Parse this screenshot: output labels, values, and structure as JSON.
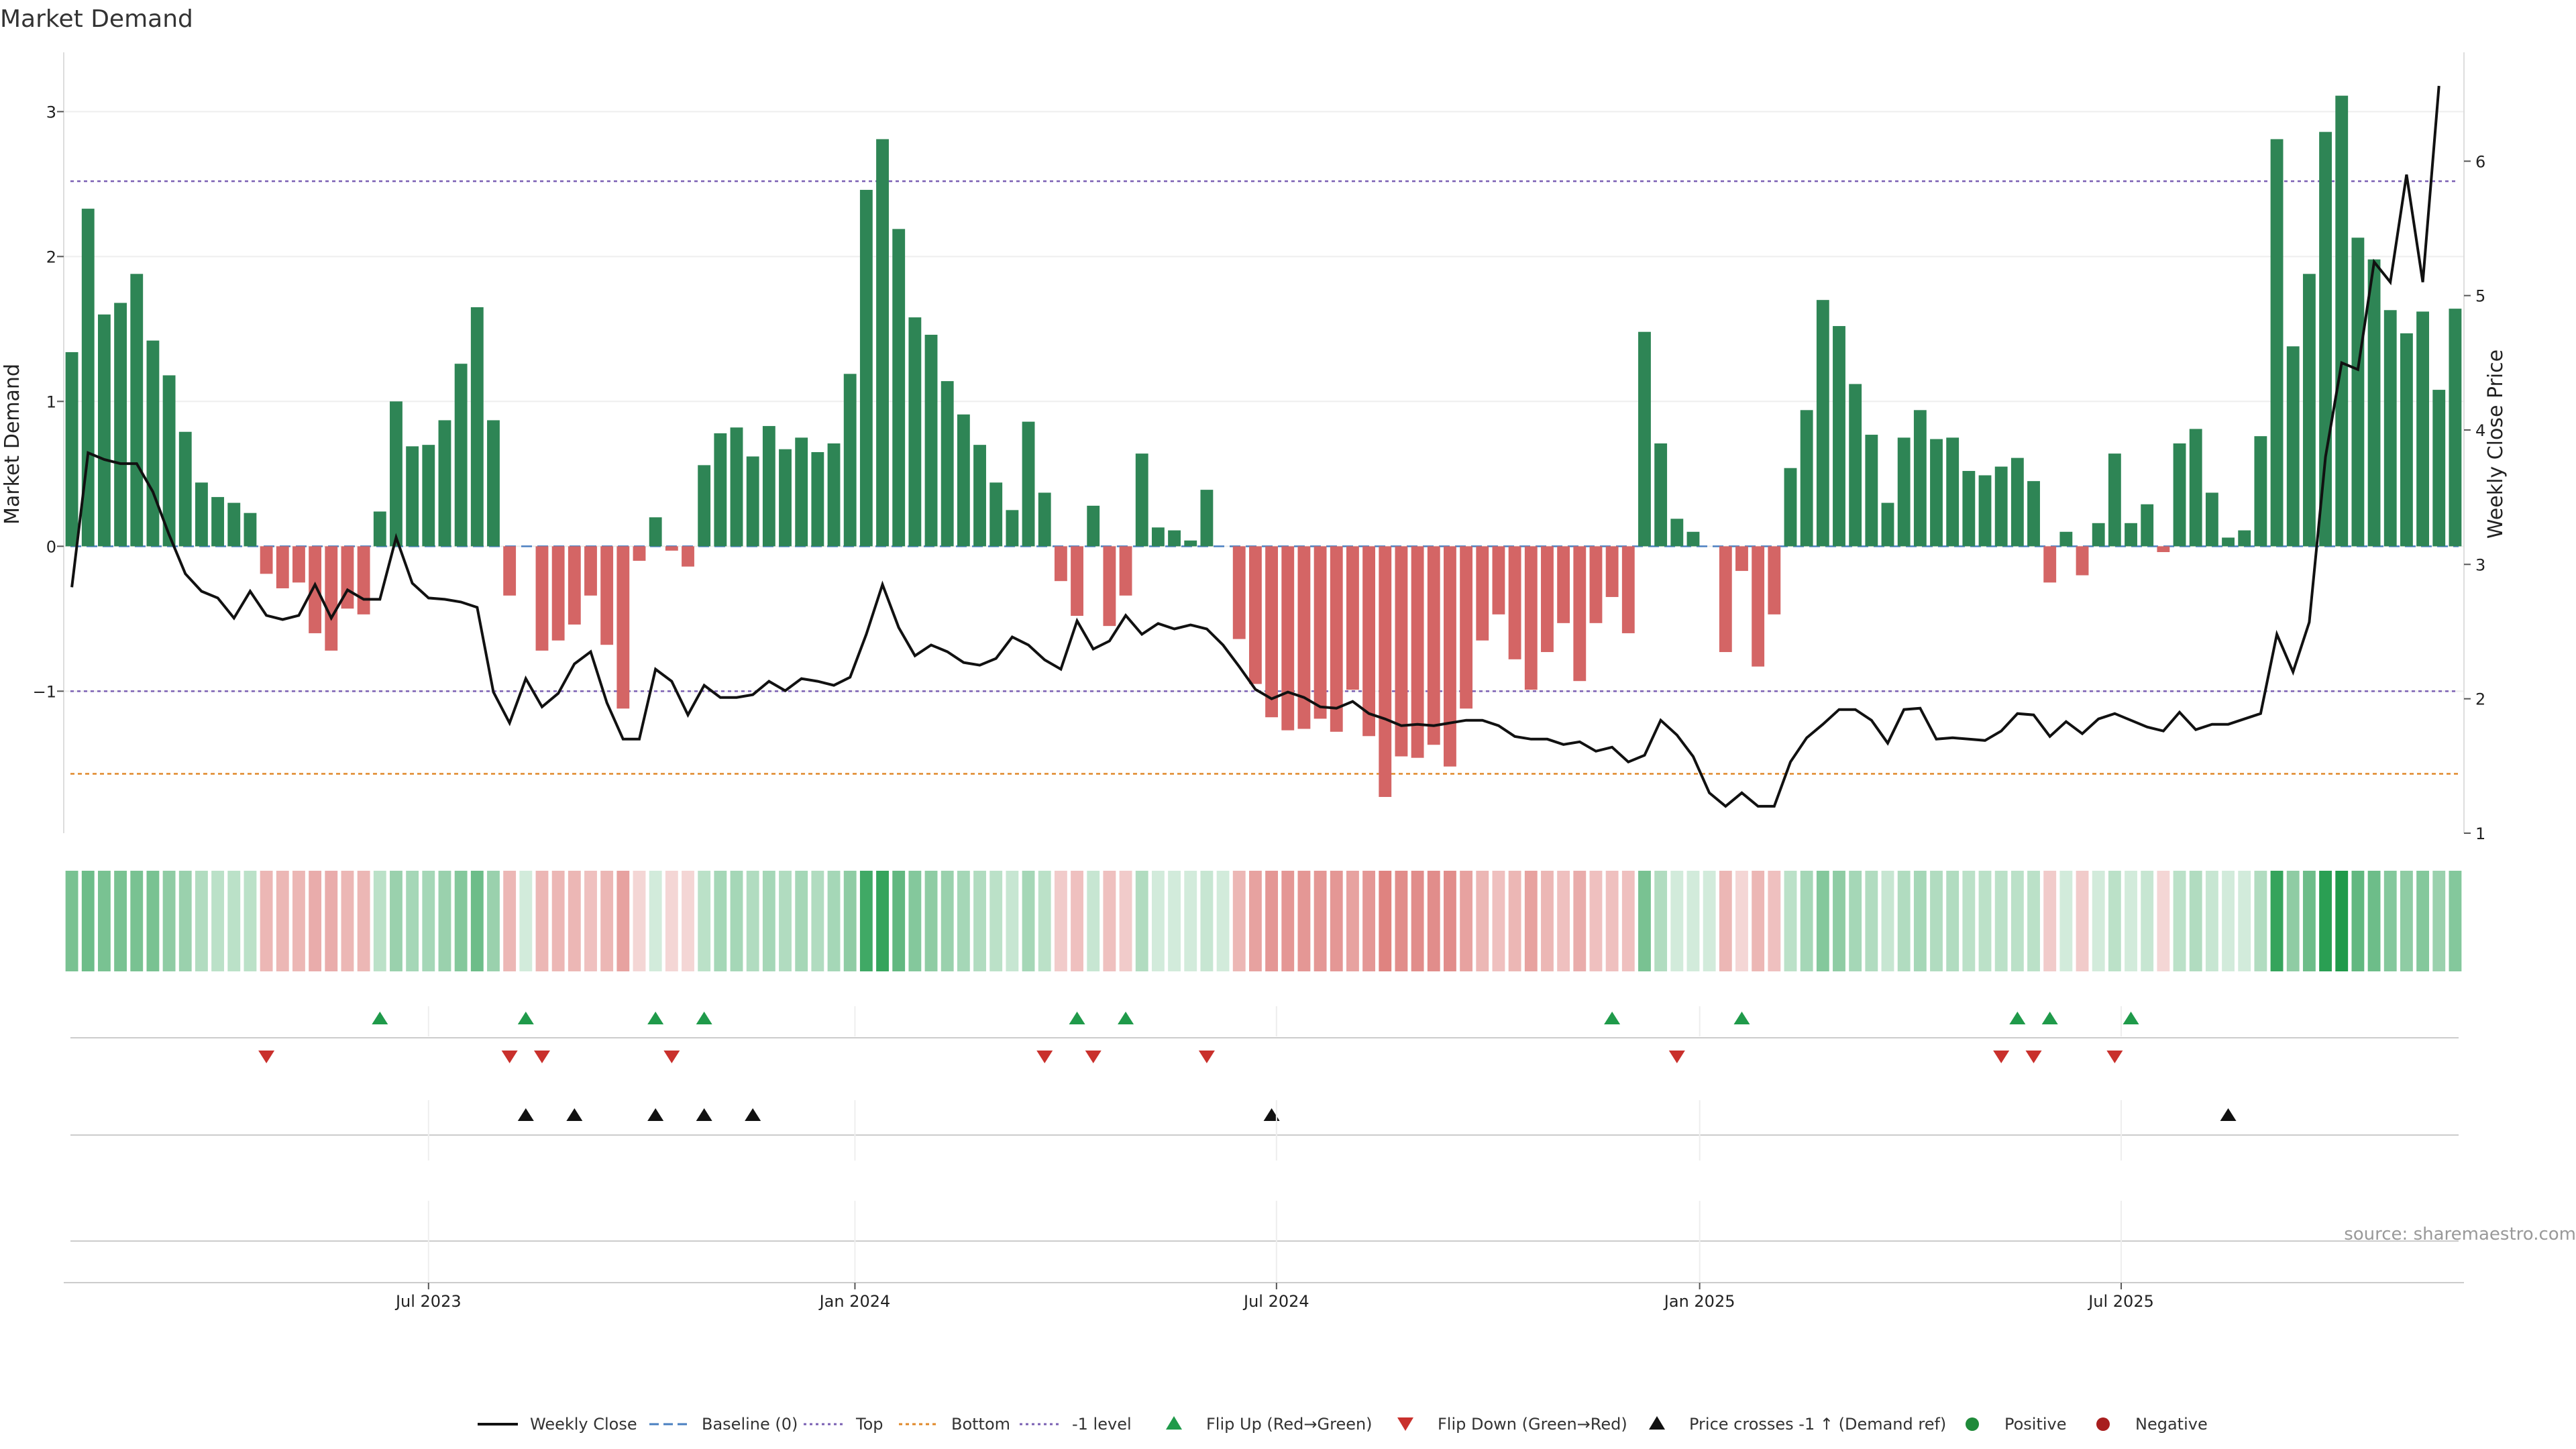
{
  "chart_data": {
    "type": "bar",
    "title": "Market Demand",
    "ylabel": "Market Demand",
    "ylabel_right": "Weekly Close Price",
    "ylim": [
      -1.98,
      3.4
    ],
    "ylim_right": [
      1,
      6.8
    ],
    "yticks": [
      3,
      2,
      1,
      0,
      -1
    ],
    "yticks_right": [
      6,
      5,
      4,
      3,
      2,
      1
    ],
    "x_tick_labels": [
      "Jul 2023",
      "Jan 2024",
      "Jul 2024",
      "Jan 2025",
      "Jul 2025"
    ],
    "x_tick_weeks": [
      22.5,
      48.8,
      74.8,
      100.9,
      126.9
    ],
    "reference_levels": {
      "top": 2.52,
      "baseline": 0,
      "minus_one": -1,
      "bottom": -1.57
    },
    "colors": {
      "positive": "#2e8555",
      "negative": "#d46565",
      "price": "#111111",
      "top": "#7a5fb3",
      "bottom": "#e0882a",
      "minus_one": "#7a5fb3",
      "baseline": "#4a7fc0",
      "flip_up": "#1f9a4a",
      "flip_down": "#c9302c",
      "cross": "#111111"
    },
    "series": [
      {
        "name": "Market Demand",
        "values": [
          1.34,
          2.33,
          1.6,
          1.68,
          1.88,
          1.42,
          1.18,
          0.79,
          0.44,
          0.34,
          0.3,
          0.23,
          -0.19,
          -0.29,
          -0.25,
          -0.6,
          -0.72,
          -0.43,
          -0.47,
          0.24,
          1.0,
          0.69,
          0.7,
          0.87,
          1.26,
          1.65,
          0.87,
          -0.34,
          0,
          -0.72,
          -0.65,
          -0.54,
          -0.34,
          -0.68,
          -1.12,
          -0.1,
          0.2,
          -0.03,
          -0.14,
          0.56,
          0.78,
          0.82,
          0.62,
          0.83,
          0.67,
          0.75,
          0.65,
          0.71,
          1.19,
          2.46,
          2.81,
          2.19,
          1.58,
          1.46,
          1.14,
          0.91,
          0.7,
          0.44,
          0.25,
          0.86,
          0.37,
          -0.24,
          -0.48,
          0.28,
          -0.55,
          -0.34,
          0.64,
          0.13,
          0.11,
          0.04,
          0.39,
          0,
          -0.64,
          -0.95,
          -1.18,
          -1.27,
          -1.26,
          -1.19,
          -1.28,
          -0.99,
          -1.31,
          -1.73,
          -1.45,
          -1.46,
          -1.37,
          -1.52,
          -1.12,
          -0.65,
          -0.47,
          -0.78,
          -0.99,
          -0.73,
          -0.53,
          -0.93,
          -0.53,
          -0.35,
          -0.6,
          1.48,
          0.71,
          0.19,
          0.1,
          0,
          -0.73,
          -0.17,
          -0.83,
          -0.47,
          0.54,
          0.94,
          1.7,
          1.52,
          1.12,
          0.77,
          0.3,
          0.75,
          0.94,
          0.74,
          0.75,
          0.52,
          0.49,
          0.55,
          0.61,
          0.45,
          -0.25,
          0.1,
          -0.2,
          0.16,
          0.64,
          0.16,
          0.29,
          -0.04,
          0.71,
          0.81,
          0.37,
          0.06,
          0.11,
          0.76,
          2.81,
          1.38,
          1.88,
          2.86,
          3.11,
          2.13,
          1.98,
          1.63,
          1.47,
          1.62,
          1.08,
          1.64
        ]
      },
      {
        "name": "Weekly Close",
        "values": [
          2.83,
          3.83,
          3.78,
          3.75,
          3.75,
          3.54,
          3.22,
          2.93,
          2.8,
          2.75,
          2.6,
          2.8,
          2.62,
          2.59,
          2.62,
          2.85,
          2.6,
          2.81,
          2.74,
          2.74,
          3.2,
          2.86,
          2.75,
          2.74,
          2.72,
          2.68,
          2.05,
          1.82,
          2.15,
          1.94,
          2.04,
          2.26,
          2.35,
          1.97,
          1.7,
          1.7,
          2.22,
          2.13,
          1.88,
          2.1,
          2.01,
          2.01,
          2.03,
          2.13,
          2.06,
          2.15,
          2.13,
          2.1,
          2.16,
          2.48,
          2.85,
          2.53,
          2.32,
          2.4,
          2.35,
          2.27,
          2.25,
          2.3,
          2.46,
          2.4,
          2.29,
          2.22,
          2.58,
          2.37,
          2.43,
          2.62,
          2.48,
          2.56,
          2.52,
          2.55,
          2.52,
          2.4,
          2.24,
          2.07,
          2.0,
          2.05,
          2.01,
          1.94,
          1.93,
          1.98,
          1.89,
          1.85,
          1.8,
          1.81,
          1.8,
          1.82,
          1.84,
          1.84,
          1.8,
          1.72,
          1.7,
          1.7,
          1.66,
          1.68,
          1.61,
          1.64,
          1.53,
          1.58,
          1.84,
          1.73,
          1.57,
          1.3,
          1.2,
          1.3,
          1.2,
          1.2,
          1.53,
          1.71,
          1.81,
          1.92,
          1.92,
          1.84,
          1.67,
          1.92,
          1.93,
          1.7,
          1.71,
          1.7,
          1.69,
          1.76,
          1.89,
          1.88,
          1.72,
          1.83,
          1.74,
          1.85,
          1.89,
          1.84,
          1.79,
          1.76,
          1.9,
          1.77,
          1.81,
          1.81,
          1.85,
          1.89,
          2.48,
          2.2,
          2.57,
          3.8,
          4.5,
          4.45,
          5.25,
          5.1,
          5.9,
          5.1,
          6.56
        ]
      }
    ],
    "demand_strip_alpha": [
      0.6,
      0.65,
      0.6,
      0.6,
      0.6,
      0.6,
      0.5,
      0.45,
      0.35,
      0.3,
      0.3,
      0.3,
      0.35,
      0.35,
      0.35,
      0.4,
      0.4,
      0.35,
      0.35,
      0.3,
      0.45,
      0.4,
      0.4,
      0.45,
      0.55,
      0.65,
      0.45,
      0.35,
      0.2,
      0.35,
      0.35,
      0.35,
      0.3,
      0.35,
      0.45,
      0.2,
      0.2,
      0.2,
      0.2,
      0.3,
      0.4,
      0.4,
      0.35,
      0.4,
      0.35,
      0.4,
      0.35,
      0.4,
      0.5,
      0.85,
      0.9,
      0.7,
      0.55,
      0.5,
      0.45,
      0.4,
      0.35,
      0.3,
      0.25,
      0.4,
      0.3,
      0.25,
      0.3,
      0.25,
      0.3,
      0.25,
      0.35,
      0.2,
      0.2,
      0.2,
      0.25,
      0.2,
      0.35,
      0.45,
      0.5,
      0.5,
      0.5,
      0.5,
      0.5,
      0.45,
      0.5,
      0.6,
      0.55,
      0.55,
      0.55,
      0.55,
      0.45,
      0.35,
      0.3,
      0.35,
      0.45,
      0.35,
      0.3,
      0.4,
      0.3,
      0.3,
      0.3,
      0.6,
      0.35,
      0.2,
      0.2,
      0.2,
      0.35,
      0.2,
      0.35,
      0.3,
      0.3,
      0.4,
      0.55,
      0.5,
      0.4,
      0.35,
      0.25,
      0.35,
      0.4,
      0.35,
      0.35,
      0.3,
      0.3,
      0.3,
      0.3,
      0.3,
      0.25,
      0.2,
      0.25,
      0.2,
      0.3,
      0.2,
      0.25,
      0.2,
      0.3,
      0.35,
      0.25,
      0.2,
      0.2,
      0.35,
      0.9,
      0.5,
      0.65,
      0.95,
      1.0,
      0.7,
      0.65,
      0.55,
      0.5,
      0.55,
      0.45,
      0.55
    ],
    "flip_up_weeks": [
      19,
      28,
      36,
      39,
      62,
      65,
      95,
      103,
      120,
      122,
      127
    ],
    "flip_down_weeks": [
      12,
      27,
      29,
      37,
      60,
      63,
      70,
      99,
      119,
      121,
      126
    ],
    "price_cross_weeks": [
      28,
      31,
      36,
      39,
      42,
      74,
      133
    ],
    "legend": [
      "Weekly Close",
      "Baseline (0)",
      "Top",
      "Bottom",
      "-1 level",
      "Flip Up (Red→Green)",
      "Flip Down (Green→Red)",
      "Price crosses -1 ↑ (Demand ref)",
      "Positive",
      "Negative"
    ],
    "source": "source: sharemaestro.com"
  }
}
